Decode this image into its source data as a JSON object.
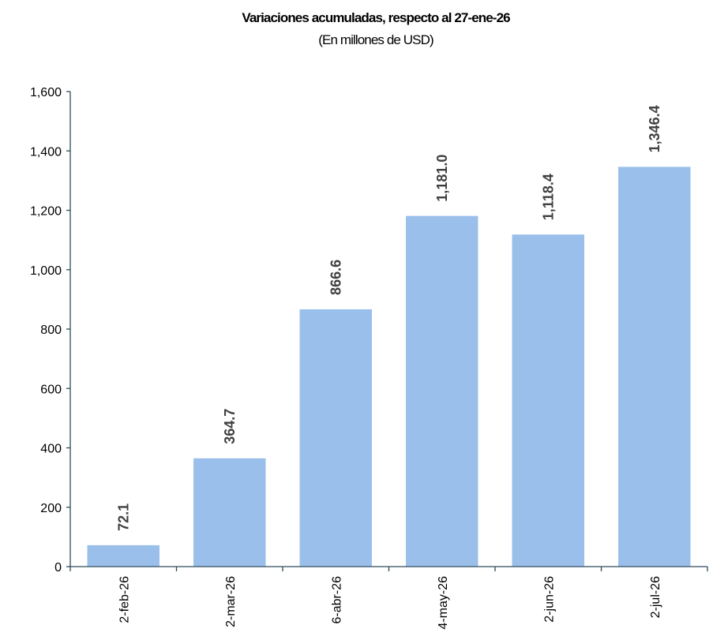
{
  "chart_data": {
    "type": "bar",
    "title": "Variaciones acumuladas, respecto al 27-ene-26",
    "subtitle": "(En millones de USD)",
    "categories": [
      "2-feb-26",
      "2-mar-26",
      "6-abr-26",
      "4-may-26",
      "2-jun-26",
      "2-jul-26"
    ],
    "values": [
      72.1,
      364.7,
      866.6,
      1181.0,
      1118.4,
      1346.4
    ],
    "data_labels": [
      "72.1",
      "364.7",
      "866.6",
      "1,181.0",
      "1,118.4",
      "1,346.4"
    ],
    "ylim": [
      0,
      1600
    ],
    "yticks": [
      0,
      200,
      400,
      600,
      800,
      1000,
      1200,
      1400,
      1600
    ],
    "ytick_labels": [
      "0",
      "200",
      "400",
      "600",
      "800",
      "1,000",
      "1,200",
      "1,400",
      "1,600"
    ],
    "xlabel": "",
    "ylabel": "",
    "grid": false,
    "legend": "none",
    "bar_color": "#9abfea"
  }
}
